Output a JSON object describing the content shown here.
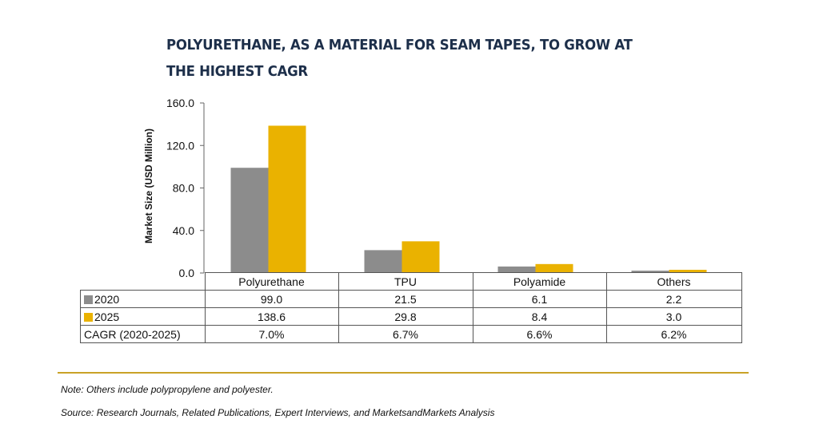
{
  "title_line1": "POLYURETHANE, AS A MATERIAL FOR SEAM TAPES, TO GROW AT",
  "title_line2": "THE HIGHEST CAGR",
  "chart_data": {
    "type": "bar",
    "categories": [
      "Polyurethane",
      "TPU",
      "Polyamide",
      "Others"
    ],
    "series": [
      {
        "name": "2020",
        "values": [
          99.0,
          21.5,
          6.1,
          2.2
        ],
        "labels": [
          "99.0",
          "21.5",
          "6.1",
          "2.2"
        ],
        "color": "#8c8c8c"
      },
      {
        "name": "2025",
        "values": [
          138.6,
          29.8,
          8.4,
          3.0
        ],
        "labels": [
          "138.6",
          "29.8",
          "8.4",
          "3.0"
        ],
        "color": "#eab200"
      }
    ],
    "cagr_label": "CAGR (2020-2025)",
    "cagr": [
      "7.0%",
      "6.7%",
      "6.6%",
      "6.2%"
    ],
    "ylabel": "Market Size (USD Million)",
    "ylim": [
      0,
      160
    ],
    "yticks": [
      "0.0",
      "40.0",
      "80.0",
      "120.0",
      "160.0"
    ],
    "ytick_values": [
      0,
      40,
      80,
      120,
      160
    ],
    "grid": false
  },
  "note": "Note: Others include polypropylene and polyester.",
  "source": "Source: Research Journals, Related Publications, Expert Interviews, and MarketsandMarkets Analysis"
}
